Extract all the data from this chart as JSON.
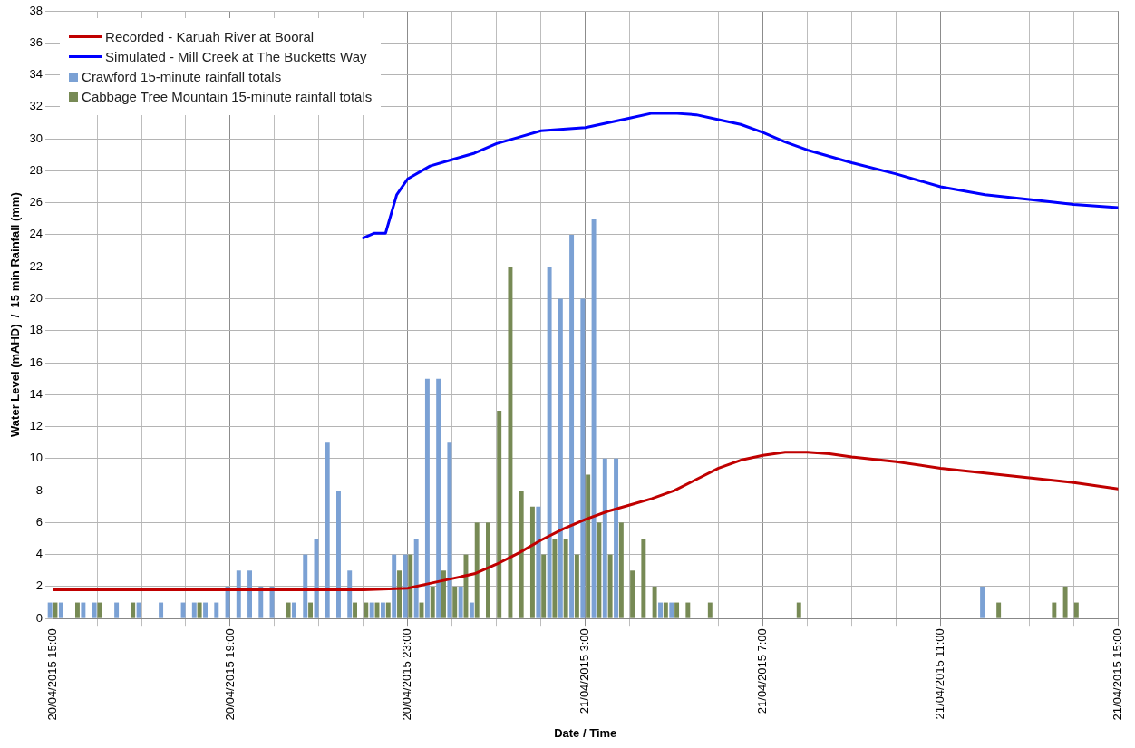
{
  "chart_data": {
    "type": "bar",
    "xlabel": "Date / Time",
    "ylabel": "Water Level (mAHD)  /  15 min Rainfall (mm)",
    "xlim": [
      "2015-04-20T15:00",
      "2015-04-21T15:00"
    ],
    "xticks": [
      {
        "value": "2015-04-20T15:00",
        "label": "20/04/2015 15:00"
      },
      {
        "value": "2015-04-20T16:00",
        "label": null
      },
      {
        "value": "2015-04-20T17:00",
        "label": null
      },
      {
        "value": "2015-04-20T18:00",
        "label": null
      },
      {
        "value": "2015-04-20T19:00",
        "label": "20/04/2015 19:00"
      },
      {
        "value": "2015-04-20T20:00",
        "label": null
      },
      {
        "value": "2015-04-20T21:00",
        "label": null
      },
      {
        "value": "2015-04-20T22:00",
        "label": null
      },
      {
        "value": "2015-04-20T23:00",
        "label": "20/04/2015 23:00"
      },
      {
        "value": "2015-04-21T00:00",
        "label": null
      },
      {
        "value": "2015-04-21T01:00",
        "label": null
      },
      {
        "value": "2015-04-21T02:00",
        "label": null
      },
      {
        "value": "2015-04-21T03:00",
        "label": "21/04/2015 3:00"
      },
      {
        "value": "2015-04-21T04:00",
        "label": null
      },
      {
        "value": "2015-04-21T05:00",
        "label": null
      },
      {
        "value": "2015-04-21T06:00",
        "label": null
      },
      {
        "value": "2015-04-21T07:00",
        "label": "21/04/2015 7:00"
      },
      {
        "value": "2015-04-21T08:00",
        "label": null
      },
      {
        "value": "2015-04-21T09:00",
        "label": null
      },
      {
        "value": "2015-04-21T10:00",
        "label": null
      },
      {
        "value": "2015-04-21T11:00",
        "label": "21/04/2015 11:00"
      },
      {
        "value": "2015-04-21T12:00",
        "label": null
      },
      {
        "value": "2015-04-21T13:00",
        "label": null
      },
      {
        "value": "2015-04-21T14:00",
        "label": null
      },
      {
        "value": "2015-04-21T15:00",
        "label": "21/04/2015 15:00"
      }
    ],
    "ylim": [
      0,
      38
    ],
    "yticks": [
      0,
      2,
      4,
      6,
      8,
      10,
      12,
      14,
      16,
      18,
      20,
      22,
      24,
      26,
      28,
      30,
      32,
      34,
      36,
      38
    ],
    "grid": true,
    "legend": "top left",
    "series": [
      {
        "name": "Recorded - Karuah River at Booral",
        "type": "line",
        "color": "#c00000",
        "x": [
          "2015-04-20T15:00",
          "2015-04-20T22:00",
          "2015-04-20T23:00",
          "2015-04-20T23:30",
          "2015-04-21T00:00",
          "2015-04-21T00:30",
          "2015-04-21T01:00",
          "2015-04-21T01:30",
          "2015-04-21T02:00",
          "2015-04-21T02:30",
          "2015-04-21T03:00",
          "2015-04-21T03:30",
          "2015-04-21T04:00",
          "2015-04-21T04:30",
          "2015-04-21T05:00",
          "2015-04-21T05:30",
          "2015-04-21T06:00",
          "2015-04-21T06:30",
          "2015-04-21T07:00",
          "2015-04-21T07:30",
          "2015-04-21T08:00",
          "2015-04-21T08:30",
          "2015-04-21T09:00",
          "2015-04-21T10:00",
          "2015-04-21T11:00",
          "2015-04-21T12:00",
          "2015-04-21T13:00",
          "2015-04-21T14:00",
          "2015-04-21T15:00"
        ],
        "values": [
          1.8,
          1.8,
          1.9,
          2.2,
          2.5,
          2.8,
          3.4,
          4.1,
          4.9,
          5.6,
          6.2,
          6.7,
          7.1,
          7.5,
          8.0,
          8.7,
          9.4,
          9.9,
          10.2,
          10.4,
          10.4,
          10.3,
          10.1,
          9.8,
          9.4,
          9.1,
          8.8,
          8.5,
          8.1
        ]
      },
      {
        "name": "Simulated - Mill Creek at The Bucketts Way",
        "type": "line",
        "color": "#0000ff",
        "x": [
          "2015-04-20T22:00",
          "2015-04-20T22:15",
          "2015-04-20T22:30",
          "2015-04-20T22:45",
          "2015-04-20T23:00",
          "2015-04-20T23:30",
          "2015-04-21T00:00",
          "2015-04-21T00:30",
          "2015-04-21T01:00",
          "2015-04-21T01:30",
          "2015-04-21T02:00",
          "2015-04-21T02:30",
          "2015-04-21T03:00",
          "2015-04-21T03:30",
          "2015-04-21T04:00",
          "2015-04-21T04:30",
          "2015-04-21T05:00",
          "2015-04-21T05:30",
          "2015-04-21T06:00",
          "2015-04-21T06:30",
          "2015-04-21T07:00",
          "2015-04-21T07:30",
          "2015-04-21T08:00",
          "2015-04-21T09:00",
          "2015-04-21T10:00",
          "2015-04-21T11:00",
          "2015-04-21T12:00",
          "2015-04-21T13:00",
          "2015-04-21T14:00",
          "2015-04-21T15:00"
        ],
        "values": [
          23.8,
          24.1,
          24.1,
          26.5,
          27.5,
          28.3,
          28.7,
          29.1,
          29.7,
          30.1,
          30.5,
          30.6,
          30.7,
          31.0,
          31.3,
          31.6,
          31.6,
          31.5,
          31.2,
          30.9,
          30.4,
          29.8,
          29.3,
          28.5,
          27.8,
          27.0,
          26.5,
          26.2,
          25.9,
          25.7
        ]
      },
      {
        "name": "Crawford 15-minute rainfall totals",
        "color": "#7ba1d4",
        "x": [
          "2015-04-20T15:00",
          "2015-04-20T15:15",
          "2015-04-20T15:45",
          "2015-04-20T16:00",
          "2015-04-20T16:30",
          "2015-04-20T17:00",
          "2015-04-20T17:30",
          "2015-04-20T18:00",
          "2015-04-20T18:15",
          "2015-04-20T18:30",
          "2015-04-20T18:45",
          "2015-04-20T19:00",
          "2015-04-20T19:15",
          "2015-04-20T19:30",
          "2015-04-20T19:45",
          "2015-04-20T20:00",
          "2015-04-20T20:30",
          "2015-04-20T20:45",
          "2015-04-20T21:00",
          "2015-04-20T21:15",
          "2015-04-20T21:30",
          "2015-04-20T21:45",
          "2015-04-20T22:15",
          "2015-04-20T22:30",
          "2015-04-20T22:45",
          "2015-04-20T23:00",
          "2015-04-20T23:15",
          "2015-04-20T23:30",
          "2015-04-20T23:45",
          "2015-04-21T00:00",
          "2015-04-21T00:15",
          "2015-04-21T00:30",
          "2015-04-21T02:00",
          "2015-04-21T02:15",
          "2015-04-21T02:30",
          "2015-04-21T02:45",
          "2015-04-21T03:00",
          "2015-04-21T03:15",
          "2015-04-21T03:30",
          "2015-04-21T03:45",
          "2015-04-21T04:45",
          "2015-04-21T05:00",
          "2015-04-21T12:00"
        ],
        "values": [
          1,
          1,
          1,
          1,
          1,
          1,
          1,
          1,
          1,
          1,
          1,
          2,
          3,
          3,
          2,
          2,
          1,
          4,
          5,
          11,
          8,
          3,
          1,
          1,
          4,
          4,
          5,
          15,
          15,
          11,
          2,
          1,
          7,
          22,
          20,
          24,
          20,
          25,
          10,
          10,
          1,
          1,
          2
        ]
      },
      {
        "name": "Cabbage Tree Mountain 15-minute rainfall totals",
        "color": "#778a55",
        "x": [
          "2015-04-20T15:00",
          "2015-04-20T15:30",
          "2015-04-20T16:00",
          "2015-04-20T16:45",
          "2015-04-20T18:15",
          "2015-04-20T20:15",
          "2015-04-20T20:45",
          "2015-04-20T21:45",
          "2015-04-20T22:00",
          "2015-04-20T22:15",
          "2015-04-20T22:30",
          "2015-04-20T22:45",
          "2015-04-20T23:00",
          "2015-04-20T23:15",
          "2015-04-20T23:30",
          "2015-04-20T23:45",
          "2015-04-21T00:00",
          "2015-04-21T00:15",
          "2015-04-21T00:30",
          "2015-04-21T00:45",
          "2015-04-21T01:00",
          "2015-04-21T01:15",
          "2015-04-21T01:30",
          "2015-04-21T01:45",
          "2015-04-21T02:00",
          "2015-04-21T02:15",
          "2015-04-21T02:30",
          "2015-04-21T02:45",
          "2015-04-21T03:00",
          "2015-04-21T03:15",
          "2015-04-21T03:30",
          "2015-04-21T03:45",
          "2015-04-21T04:00",
          "2015-04-21T04:15",
          "2015-04-21T04:30",
          "2015-04-21T04:45",
          "2015-04-21T05:00",
          "2015-04-21T05:15",
          "2015-04-21T05:45",
          "2015-04-21T07:45",
          "2015-04-21T12:15",
          "2015-04-21T13:30",
          "2015-04-21T13:45",
          "2015-04-21T14:00"
        ],
        "values": [
          1,
          1,
          1,
          1,
          1,
          1,
          1,
          1,
          1,
          1,
          1,
          3,
          4,
          1,
          2,
          3,
          2,
          4,
          6,
          6,
          13,
          22,
          8,
          7,
          4,
          5,
          5,
          4,
          9,
          6,
          4,
          6,
          3,
          5,
          2,
          1,
          1,
          1,
          1,
          1,
          1,
          1,
          2,
          1
        ]
      }
    ]
  }
}
